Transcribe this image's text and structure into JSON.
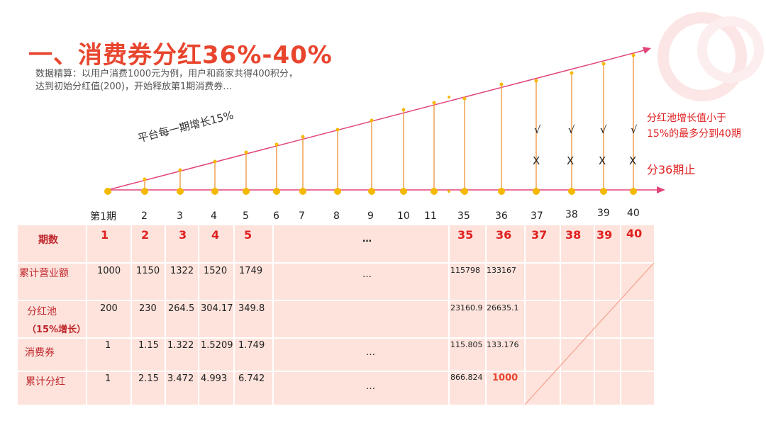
{
  "title": "一、消费券分红36%-40%",
  "subtitle": "数据精算：以用户消费1000元为例，用户和商家共得400积分，达到初始分红值(200)，开始释放第1期消费券…",
  "diagram": {
    "growth_label": "平台每一期增长15%",
    "annotation_top_line1": "分红池增长值小于",
    "annotation_top_line2": "15%的最多分到40期",
    "annotation_stop": "分36期止",
    "check_symbol": "√",
    "cross_symbol": "X",
    "periods": [
      "第1期",
      "2",
      "3",
      "4",
      "5",
      "6",
      "7",
      "8",
      "9",
      "10",
      "11",
      "35",
      "36",
      "37",
      "38",
      "39",
      "40"
    ]
  },
  "table": {
    "row_labels": {
      "periods": "期数",
      "revenue": "累计营业额",
      "pool_line1": "分红池",
      "pool_line2": "（15%增长）",
      "coupon": "消费券",
      "cum_dividend": "累计分红"
    },
    "ellipsis": "…",
    "period_values": [
      "1",
      "2",
      "3",
      "4",
      "5",
      "35",
      "36",
      "37",
      "38",
      "39",
      "40"
    ],
    "revenue": [
      "1000",
      "1150",
      "1322",
      "1520",
      "1749",
      "115798",
      "133167"
    ],
    "pool": [
      "200",
      "230",
      "264.5",
      "304.17",
      "349.8",
      "23160.9",
      "26635.1"
    ],
    "coupon": [
      "1",
      "1.15",
      "1.322",
      "1.5209",
      "1.749",
      "115.805",
      "133.176"
    ],
    "cum_dividend": [
      "1",
      "2.15",
      "3.472",
      "4.993",
      "6.742",
      "866.824",
      "1000"
    ]
  }
}
